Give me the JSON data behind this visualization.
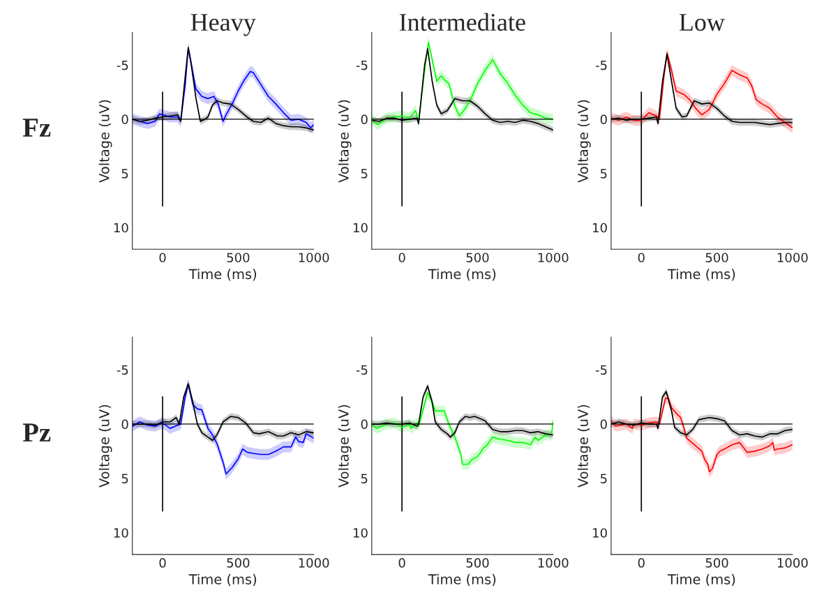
{
  "chart_data": [
    {
      "type": "line",
      "title": "Heavy",
      "xlabel": "Time (ms)",
      "ylabel": "Voltage (uV)",
      "xlim": [
        -200,
        1000
      ],
      "ylim": [
        12,
        -8
      ],
      "xticks": [
        0,
        500,
        1000
      ],
      "yticks": [
        -5,
        0,
        5,
        10
      ],
      "annotations": [
        "Fz"
      ],
      "ref_lines": [
        {
          "axis": "y",
          "value": 0,
          "color": "#000000"
        }
      ],
      "series": [
        {
          "type": "line",
          "color": "#000000",
          "x": [
            0,
            0
          ],
          "values": [
            8,
            -2.5
          ]
        },
        {
          "color": "#0000ff",
          "x": [
            -200,
            -150,
            -100,
            -50,
            -20,
            0,
            50,
            100,
            120,
            150,
            170,
            190,
            220,
            260,
            300,
            340,
            370,
            400,
            420,
            460,
            500,
            540,
            580,
            600,
            650,
            700,
            750,
            800,
            850,
            900,
            950,
            980,
            1000
          ],
          "values": [
            0,
            0.2,
            0.4,
            0.2,
            -0.5,
            -0.4,
            -0.2,
            -0.2,
            0.2,
            -3.2,
            -6.6,
            -5.1,
            -2.8,
            -2.1,
            -1.9,
            -2.1,
            -1.3,
            0.2,
            -0.4,
            -1.4,
            -2.6,
            -3.6,
            -4.4,
            -4.3,
            -3.2,
            -2.1,
            -1.4,
            -0.6,
            0.1,
            0,
            0.3,
            0.8,
            0.5
          ],
          "lower": [
            -0.5,
            -0.3,
            -0.1,
            -0.3,
            -1.0,
            -0.9,
            -0.7,
            -0.7,
            -0.3,
            -3.7,
            -7.1,
            -5.6,
            -3.3,
            -2.6,
            -2.4,
            -2.6,
            -1.8,
            -0.3,
            -0.9,
            -1.9,
            -3.1,
            -4.1,
            -4.9,
            -4.8,
            -3.7,
            -2.6,
            -1.9,
            -1.1,
            -0.4,
            -0.5,
            -0.2,
            0.3,
            0.0
          ],
          "upper": [
            0.5,
            0.7,
            0.9,
            0.7,
            0.0,
            0.1,
            0.3,
            0.3,
            0.7,
            -2.7,
            -6.1,
            -4.6,
            -2.3,
            -1.6,
            -1.4,
            -1.6,
            -0.8,
            0.7,
            0.1,
            -0.9,
            -2.1,
            -3.1,
            -3.9,
            -3.8,
            -2.7,
            -1.6,
            -0.9,
            -0.1,
            0.6,
            0.5,
            0.8,
            1.3,
            1.0
          ]
        },
        {
          "color": "#000000",
          "x": [
            -200,
            -150,
            -100,
            -50,
            0,
            50,
            100,
            120,
            150,
            170,
            190,
            220,
            250,
            280,
            300,
            330,
            360,
            400,
            450,
            500,
            550,
            600,
            650,
            700,
            750,
            800,
            850,
            900,
            950,
            1000
          ],
          "values": [
            0,
            0.2,
            0.1,
            -0.1,
            -0.2,
            -0.3,
            -0.4,
            0.2,
            -4,
            -6.6,
            -5,
            -2,
            0.2,
            0,
            -0.2,
            -1.3,
            -1.7,
            -1.5,
            -1.4,
            -0.9,
            -0.3,
            0.2,
            0.3,
            -0.1,
            0.4,
            0.6,
            0.7,
            0.7,
            0.8,
            1.0
          ],
          "lower": [
            -0.3,
            -0.1,
            -0.2,
            -0.4,
            -0.5,
            -0.6,
            -0.7,
            -0.1,
            -4.3,
            -6.9,
            -5.3,
            -2.3,
            -0.1,
            -0.3,
            -0.5,
            -1.6,
            -2.0,
            -1.8,
            -1.7,
            -1.2,
            -0.6,
            -0.1,
            0.0,
            -0.4,
            0.1,
            0.3,
            0.4,
            0.4,
            0.5,
            0.7
          ],
          "upper": [
            0.3,
            0.5,
            0.4,
            0.2,
            0.1,
            0.0,
            -0.1,
            0.5,
            -3.7,
            -6.3,
            -4.7,
            -1.7,
            0.5,
            0.3,
            0.1,
            -1.0,
            -1.4,
            -1.2,
            -1.1,
            -0.6,
            0.0,
            0.5,
            0.6,
            0.2,
            0.7,
            0.9,
            1.0,
            1.0,
            1.1,
            1.3
          ]
        }
      ]
    },
    {
      "type": "line",
      "title": "Intermediate",
      "xlabel": "Time (ms)",
      "ylabel": "Voltage (uV)",
      "xlim": [
        -200,
        1000
      ],
      "ylim": [
        12,
        -8
      ],
      "xticks": [
        0,
        500,
        1000
      ],
      "yticks": [
        -5,
        0,
        5,
        10
      ],
      "ref_lines": [
        {
          "axis": "y",
          "value": 0,
          "color": "#000000"
        }
      ],
      "series": [
        {
          "type": "line",
          "color": "#000000",
          "x": [
            0,
            0
          ],
          "values": [
            8,
            -2.5
          ]
        },
        {
          "color": "#00ff00",
          "x": [
            -200,
            -160,
            -100,
            -50,
            0,
            50,
            90,
            110,
            150,
            175,
            200,
            230,
            260,
            290,
            310,
            350,
            380,
            420,
            460,
            500,
            550,
            600,
            650,
            700,
            750,
            800,
            850,
            900,
            950,
            1000
          ],
          "values": [
            0,
            0.5,
            -0.1,
            -0.2,
            -0.3,
            -0.1,
            -0.8,
            0.3,
            -4.5,
            -7.1,
            -5.5,
            -3.5,
            -4.0,
            -3.5,
            -3.3,
            -1.2,
            -0.3,
            -1.0,
            -2.0,
            -3.3,
            -4.5,
            -5.5,
            -4.2,
            -3.3,
            -2.2,
            -1.3,
            -0.6,
            -0.4,
            -0.1,
            0
          ],
          "lower": [
            -0.5,
            0.0,
            -0.6,
            -0.7,
            -0.8,
            -0.6,
            -1.3,
            -0.2,
            -5.0,
            -7.6,
            -6.0,
            -4.0,
            -4.5,
            -4.0,
            -3.8,
            -1.7,
            -0.8,
            -1.5,
            -2.5,
            -3.8,
            -5.0,
            -6.0,
            -4.7,
            -3.8,
            -2.7,
            -1.8,
            -1.1,
            -0.9,
            -0.6,
            -0.5
          ],
          "upper": [
            0.5,
            1.0,
            0.4,
            0.3,
            0.2,
            0.4,
            -0.3,
            0.8,
            -4.0,
            -6.6,
            -5.0,
            -3.0,
            -3.5,
            -3.0,
            -2.8,
            -0.7,
            0.2,
            -0.5,
            -1.5,
            -2.8,
            -4.0,
            -5.0,
            -3.7,
            -2.8,
            -1.7,
            -0.8,
            -0.1,
            0.1,
            0.4,
            0.5
          ]
        },
        {
          "color": "#000000",
          "x": [
            -200,
            -150,
            -100,
            -50,
            0,
            50,
            100,
            110,
            150,
            170,
            200,
            230,
            260,
            300,
            350,
            400,
            450,
            500,
            550,
            600,
            650,
            700,
            750,
            800,
            850,
            900,
            950,
            1000
          ],
          "values": [
            0.1,
            0.2,
            -0.1,
            -0.1,
            0.1,
            0,
            -0.1,
            0.4,
            -5,
            -6.5,
            -3.5,
            -1.3,
            -0.5,
            -0.8,
            -1.9,
            -1.7,
            -1.7,
            -1.2,
            -0.5,
            0.1,
            0.3,
            0.2,
            0.3,
            0.1,
            0.2,
            0.4,
            0.7,
            1.0
          ],
          "lower": [
            -0.2,
            -0.1,
            -0.4,
            -0.4,
            -0.2,
            -0.3,
            -0.4,
            0.1,
            -5.3,
            -6.8,
            -3.8,
            -1.6,
            -0.8,
            -1.1,
            -2.2,
            -2.0,
            -2.0,
            -1.5,
            -0.8,
            -0.2,
            0.0,
            -0.1,
            0.0,
            -0.2,
            -0.1,
            0.1,
            0.4,
            0.7
          ],
          "upper": [
            0.4,
            0.5,
            0.2,
            0.2,
            0.4,
            0.3,
            0.2,
            0.7,
            -4.7,
            -6.2,
            -3.2,
            -1.0,
            -0.2,
            -0.5,
            -1.6,
            -1.4,
            -1.4,
            -0.9,
            -0.2,
            0.4,
            0.6,
            0.5,
            0.6,
            0.4,
            0.5,
            0.7,
            1.0,
            1.3
          ]
        }
      ]
    },
    {
      "type": "line",
      "title": "Low",
      "xlabel": "Time (ms)",
      "ylabel": "Voltage (uV)",
      "xlim": [
        -200,
        1000
      ],
      "ylim": [
        12,
        -8
      ],
      "xticks": [
        0,
        500,
        1000
      ],
      "yticks": [
        -5,
        0,
        5,
        10
      ],
      "ref_lines": [
        {
          "axis": "y",
          "value": 0,
          "color": "#000000"
        }
      ],
      "series": [
        {
          "type": "line",
          "color": "#000000",
          "x": [
            0,
            0
          ],
          "values": [
            8,
            -2.5
          ]
        },
        {
          "color": "#ff0000",
          "x": [
            -200,
            -150,
            -100,
            -50,
            0,
            50,
            100,
            120,
            150,
            170,
            200,
            230,
            280,
            320,
            360,
            400,
            450,
            500,
            550,
            600,
            650,
            700,
            730,
            760,
            800,
            850,
            900,
            950,
            1000
          ],
          "values": [
            -0.1,
            0.1,
            -0.2,
            0.1,
            0.1,
            -0.6,
            -0.3,
            0,
            -4,
            -6.1,
            -4.5,
            -2.6,
            -2.3,
            -1.8,
            -1.0,
            -0.4,
            -0.9,
            -2.3,
            -3.3,
            -4.5,
            -4.1,
            -3.8,
            -3.1,
            -1.8,
            -1.4,
            -1.0,
            -0.2,
            0.3,
            0.8
          ],
          "lower": [
            -0.6,
            -0.4,
            -0.7,
            -0.4,
            -0.4,
            -1.1,
            -0.8,
            -0.5,
            -4.5,
            -6.6,
            -5.0,
            -3.1,
            -2.8,
            -2.3,
            -1.5,
            -0.9,
            -1.4,
            -2.8,
            -3.8,
            -5.0,
            -4.6,
            -4.3,
            -3.6,
            -2.3,
            -1.9,
            -1.5,
            -0.7,
            -0.2,
            0.3
          ],
          "upper": [
            0.4,
            0.6,
            0.3,
            0.6,
            0.6,
            -0.1,
            0.2,
            0.5,
            -3.5,
            -5.6,
            -4.0,
            -2.1,
            -1.8,
            -1.3,
            -0.5,
            0.1,
            -0.4,
            -1.8,
            -2.8,
            -4.0,
            -3.6,
            -3.3,
            -2.6,
            -1.3,
            -0.9,
            -0.5,
            0.3,
            0.8,
            1.3
          ]
        },
        {
          "color": "#000000",
          "x": [
            -200,
            -150,
            -100,
            -50,
            0,
            50,
            100,
            110,
            140,
            170,
            200,
            230,
            270,
            300,
            350,
            400,
            450,
            500,
            550,
            600,
            650,
            700,
            750,
            800,
            850,
            900,
            950,
            1000
          ],
          "values": [
            0,
            -0.1,
            0.1,
            0,
            0,
            -0.1,
            -0.2,
            0.4,
            -3.5,
            -6,
            -3.5,
            -1,
            -0.2,
            -0.3,
            -1.7,
            -1.4,
            -1.5,
            -1.0,
            -0.3,
            0.2,
            0.3,
            0.3,
            0.3,
            0.4,
            0.5,
            0.4,
            0.3,
            0.3
          ],
          "lower": [
            -0.3,
            -0.4,
            -0.2,
            -0.3,
            -0.3,
            -0.4,
            -0.5,
            0.1,
            -3.8,
            -6.3,
            -3.8,
            -1.3,
            -0.5,
            -0.6,
            -2.0,
            -1.7,
            -1.8,
            -1.3,
            -0.6,
            -0.1,
            0.0,
            0.0,
            0.0,
            0.1,
            0.2,
            0.1,
            0.0,
            0.0
          ],
          "upper": [
            0.3,
            0.2,
            0.4,
            0.3,
            0.3,
            0.2,
            0.1,
            0.7,
            -3.2,
            -5.7,
            -3.2,
            -0.7,
            0.1,
            0.0,
            -1.4,
            -1.1,
            -1.2,
            -0.7,
            0.0,
            0.5,
            0.6,
            0.6,
            0.6,
            0.7,
            0.8,
            0.7,
            0.6,
            0.6
          ]
        }
      ]
    },
    {
      "type": "line",
      "xlabel": "Time (ms)",
      "ylabel": "Voltage (uV)",
      "xlim": [
        -200,
        1000
      ],
      "ylim": [
        12,
        -8
      ],
      "xticks": [
        0,
        500,
        1000
      ],
      "yticks": [
        -5,
        0,
        5,
        10
      ],
      "annotations": [
        "Pz"
      ],
      "ref_lines": [
        {
          "axis": "y",
          "value": 0,
          "color": "#000000"
        }
      ],
      "series": [
        {
          "type": "line",
          "color": "#000000",
          "x": [
            0,
            0
          ],
          "values": [
            8,
            -2.5
          ]
        },
        {
          "color": "#0000ff",
          "x": [
            -200,
            -150,
            -100,
            -50,
            0,
            50,
            100,
            120,
            150,
            170,
            200,
            230,
            260,
            300,
            330,
            360,
            400,
            420,
            460,
            500,
            530,
            560,
            600,
            650,
            700,
            750,
            800,
            850,
            880,
            900,
            930,
            950,
            1000
          ],
          "values": [
            0.2,
            -0.2,
            0.1,
            0.2,
            -0.1,
            0.4,
            0.1,
            0,
            -2.5,
            -3.7,
            -1.8,
            -1.4,
            -1.3,
            0.4,
            1.0,
            1.8,
            3.5,
            4.6,
            4.0,
            3.2,
            2.3,
            2.6,
            2.7,
            2.8,
            2.8,
            2.5,
            2.1,
            2.1,
            1.2,
            1.6,
            1.7,
            0.9,
            1.3
          ],
          "lower": [
            -0.3,
            -0.7,
            -0.4,
            -0.3,
            -0.6,
            -0.1,
            -0.4,
            -0.5,
            -3.0,
            -4.2,
            -2.3,
            -1.9,
            -1.8,
            -0.1,
            0.5,
            1.3,
            3.0,
            4.1,
            3.5,
            2.7,
            1.8,
            2.1,
            2.2,
            2.3,
            2.3,
            2.0,
            1.6,
            1.6,
            0.7,
            1.1,
            1.2,
            0.4,
            0.8
          ],
          "upper": [
            0.7,
            0.3,
            0.6,
            0.7,
            0.4,
            0.9,
            0.6,
            0.5,
            -2.0,
            -3.2,
            -1.3,
            -0.9,
            -0.8,
            0.9,
            1.5,
            2.3,
            4.0,
            5.1,
            4.5,
            3.7,
            2.8,
            3.1,
            3.2,
            3.3,
            3.3,
            3.0,
            2.6,
            2.6,
            1.7,
            2.1,
            2.2,
            1.4,
            1.8
          ]
        },
        {
          "color": "#000000",
          "x": [
            -200,
            -150,
            -100,
            -50,
            0,
            50,
            90,
            110,
            140,
            170,
            200,
            230,
            260,
            300,
            330,
            360,
            400,
            450,
            500,
            550,
            600,
            640,
            700,
            760,
            800,
            850,
            900,
            950,
            1000
          ],
          "values": [
            0,
            0,
            0,
            0.1,
            -0.2,
            -0.2,
            -0.6,
            0,
            -2.5,
            -3.7,
            -2,
            0,
            0.8,
            1.2,
            1.5,
            1.0,
            -0.2,
            -0.7,
            -0.6,
            -0.1,
            0.8,
            0.9,
            0.7,
            1.1,
            1.1,
            0.8,
            1.0,
            0.7,
            0.8
          ],
          "lower": [
            -0.3,
            -0.3,
            -0.3,
            -0.2,
            -0.5,
            -0.5,
            -0.9,
            -0.3,
            -2.8,
            -4.0,
            -2.3,
            -0.3,
            0.5,
            0.9,
            1.2,
            0.7,
            -0.5,
            -1.0,
            -0.9,
            -0.4,
            0.5,
            0.6,
            0.4,
            0.8,
            0.8,
            0.5,
            0.7,
            0.4,
            0.5
          ],
          "upper": [
            0.3,
            0.3,
            0.3,
            0.4,
            0.1,
            0.1,
            -0.3,
            0.3,
            -2.2,
            -3.4,
            -1.7,
            0.3,
            1.1,
            1.5,
            1.8,
            1.3,
            0.1,
            -0.4,
            -0.3,
            0.2,
            1.1,
            1.2,
            1.0,
            1.4,
            1.4,
            1.1,
            1.3,
            1.0,
            1.1
          ]
        }
      ]
    },
    {
      "type": "line",
      "xlabel": "Time (ms)",
      "ylabel": "Voltage (uV)",
      "xlim": [
        -200,
        1000
      ],
      "ylim": [
        12,
        -8
      ],
      "xticks": [
        0,
        500,
        1000
      ],
      "yticks": [
        -5,
        0,
        5,
        10
      ],
      "ref_lines": [
        {
          "axis": "y",
          "value": 0,
          "color": "#000000"
        }
      ],
      "series": [
        {
          "type": "line",
          "color": "#000000",
          "x": [
            0,
            0
          ],
          "values": [
            8,
            -2.5
          ]
        },
        {
          "color": "#00ff00",
          "x": [
            -200,
            -170,
            -100,
            -50,
            0,
            50,
            60,
            100,
            110,
            170,
            200,
            220,
            260,
            280,
            310,
            350,
            390,
            400,
            440,
            460,
            500,
            540,
            560,
            580,
            600,
            650,
            700,
            750,
            800,
            850,
            880,
            900,
            950,
            990,
            1000
          ],
          "values": [
            0,
            0.4,
            0,
            -0.1,
            0.3,
            0,
            0.4,
            -0.1,
            0.2,
            -2.9,
            -2.0,
            -1.2,
            -1.2,
            -1.2,
            0,
            1.2,
            2.8,
            3.7,
            3.7,
            3.3,
            3.0,
            2.2,
            2.0,
            1.6,
            1.2,
            1.4,
            1.5,
            1.7,
            1.7,
            1.9,
            1.2,
            1.5,
            1.0,
            1.0,
            -0.3
          ],
          "lower": [
            -0.5,
            -0.1,
            -0.5,
            -0.6,
            -0.2,
            -0.5,
            -0.1,
            -0.6,
            -0.3,
            -3.4,
            -2.5,
            -1.7,
            -1.7,
            -1.7,
            -0.5,
            0.7,
            2.3,
            3.2,
            3.2,
            2.8,
            2.5,
            1.7,
            1.5,
            1.1,
            0.7,
            0.9,
            1.0,
            1.2,
            1.2,
            1.4,
            0.7,
            1.0,
            0.5,
            0.5,
            -0.8
          ],
          "upper": [
            0.5,
            0.9,
            0.5,
            0.4,
            0.8,
            0.5,
            0.9,
            0.4,
            0.7,
            -2.4,
            -1.5,
            -0.7,
            -0.7,
            -0.7,
            0.5,
            1.7,
            3.3,
            4.2,
            4.2,
            3.8,
            3.5,
            2.7,
            2.5,
            2.1,
            1.7,
            1.9,
            2.0,
            2.2,
            2.2,
            2.4,
            1.7,
            2.0,
            1.5,
            1.5,
            0.2
          ]
        },
        {
          "color": "#000000",
          "x": [
            -200,
            -150,
            -100,
            -50,
            0,
            50,
            100,
            110,
            140,
            170,
            200,
            220,
            260,
            300,
            320,
            350,
            380,
            420,
            450,
            480,
            500,
            550,
            600,
            650,
            700,
            750,
            800,
            850,
            900,
            950,
            1000
          ],
          "values": [
            0,
            0,
            -0.1,
            0,
            0,
            -0.1,
            0.2,
            0,
            -2.5,
            -3.5,
            -2,
            -0.2,
            0.5,
            0.9,
            1.2,
            0.8,
            -0.2,
            -0.7,
            -0.6,
            -0.7,
            -0.6,
            -0.3,
            0.5,
            0.7,
            0.7,
            0.6,
            0.6,
            0.8,
            0.7,
            0.9,
            1.0
          ],
          "lower": [
            -0.3,
            -0.3,
            -0.4,
            -0.3,
            -0.3,
            -0.4,
            -0.1,
            -0.3,
            -2.8,
            -3.8,
            -2.3,
            -0.5,
            0.2,
            0.6,
            0.9,
            0.5,
            -0.5,
            -1.0,
            -0.9,
            -1.0,
            -0.9,
            -0.6,
            0.2,
            0.4,
            0.4,
            0.3,
            0.3,
            0.5,
            0.4,
            0.6,
            0.7
          ],
          "upper": [
            0.3,
            0.3,
            0.2,
            0.3,
            0.3,
            0.2,
            0.5,
            0.3,
            -2.2,
            -3.2,
            -1.7,
            0.1,
            0.8,
            1.2,
            1.5,
            1.1,
            0.1,
            -0.4,
            -0.3,
            -0.4,
            -0.3,
            0.0,
            0.8,
            1.0,
            1.0,
            0.9,
            0.9,
            1.1,
            1.0,
            1.2,
            1.3
          ]
        }
      ]
    },
    {
      "type": "line",
      "xlabel": "Time (ms)",
      "ylabel": "Voltage (uV)",
      "xlim": [
        -200,
        1000
      ],
      "ylim": [
        12,
        -8
      ],
      "xticks": [
        0,
        500,
        1000
      ],
      "yticks": [
        -5,
        0,
        5,
        10
      ],
      "ref_lines": [
        {
          "axis": "y",
          "value": 0,
          "color": "#000000"
        }
      ],
      "series": [
        {
          "type": "line",
          "color": "#000000",
          "x": [
            0,
            0
          ],
          "values": [
            8,
            -2.5
          ]
        },
        {
          "color": "#ff0000",
          "x": [
            -200,
            -170,
            -100,
            -60,
            -50,
            0,
            50,
            100,
            120,
            160,
            180,
            200,
            230,
            260,
            280,
            300,
            350,
            400,
            420,
            440,
            450,
            470,
            500,
            520,
            550,
            600,
            650,
            700,
            750,
            800,
            850,
            870,
            880,
            900,
            950,
            1000
          ],
          "values": [
            -0.3,
            0.2,
            0,
            0.4,
            0,
            0.1,
            -0.1,
            -0.2,
            0,
            -2.4,
            -2.3,
            -1.5,
            -1.0,
            -0.6,
            0.3,
            1.3,
            1.9,
            2.5,
            3.3,
            3.7,
            4.4,
            4.1,
            2.8,
            2.5,
            2.3,
            1.9,
            1.7,
            2.6,
            2.5,
            2.3,
            2.0,
            1.7,
            2.4,
            2.3,
            2.2,
            1.9
          ],
          "lower": [
            -0.8,
            -0.3,
            -0.5,
            -0.1,
            -0.5,
            -0.4,
            -0.6,
            -0.7,
            -0.5,
            -2.9,
            -2.8,
            -2.0,
            -1.5,
            -1.1,
            -0.2,
            0.8,
            1.4,
            2.0,
            2.8,
            3.2,
            3.9,
            3.6,
            2.3,
            2.0,
            1.8,
            1.4,
            1.2,
            2.1,
            2.0,
            1.8,
            1.5,
            1.2,
            1.9,
            1.8,
            1.7,
            1.4
          ],
          "upper": [
            0.2,
            0.7,
            0.5,
            0.9,
            0.5,
            0.6,
            0.4,
            0.3,
            0.5,
            -1.9,
            -1.8,
            -1.0,
            -0.5,
            -0.1,
            0.8,
            1.8,
            2.4,
            3.0,
            3.8,
            4.2,
            4.9,
            4.6,
            3.3,
            3.0,
            2.8,
            2.4,
            2.2,
            3.1,
            3.0,
            2.8,
            2.5,
            2.2,
            2.9,
            2.8,
            2.7,
            2.4
          ]
        },
        {
          "color": "#000000",
          "x": [
            -200,
            -150,
            -100,
            -50,
            0,
            50,
            100,
            110,
            140,
            165,
            200,
            220,
            260,
            300,
            340,
            380,
            450,
            500,
            550,
            600,
            650,
            700,
            750,
            800,
            850,
            900,
            950,
            1000
          ],
          "values": [
            0,
            -0.2,
            0,
            0.1,
            -0.1,
            0,
            0,
            0.4,
            -2.5,
            -3.0,
            -1.2,
            0.3,
            0.8,
            1.0,
            0.5,
            -0.4,
            -0.6,
            -0.5,
            -0.3,
            0.6,
            1.0,
            0.9,
            1.1,
            1.2,
            0.9,
            0.9,
            0.6,
            0.5
          ],
          "lower": [
            -0.3,
            -0.5,
            -0.3,
            -0.2,
            -0.4,
            -0.3,
            -0.3,
            0.1,
            -2.8,
            -3.3,
            -1.5,
            0.0,
            0.5,
            0.7,
            0.2,
            -0.7,
            -0.9,
            -0.8,
            -0.6,
            0.3,
            0.7,
            0.6,
            0.8,
            0.9,
            0.6,
            0.6,
            0.3,
            0.2
          ],
          "upper": [
            0.3,
            0.1,
            0.3,
            0.4,
            0.2,
            0.3,
            0.3,
            0.7,
            -2.2,
            -2.7,
            -0.9,
            0.6,
            1.1,
            1.3,
            0.8,
            -0.1,
            -0.3,
            -0.2,
            0.0,
            0.9,
            1.3,
            1.2,
            1.4,
            1.5,
            1.2,
            1.2,
            0.9,
            0.8
          ]
        }
      ]
    }
  ]
}
